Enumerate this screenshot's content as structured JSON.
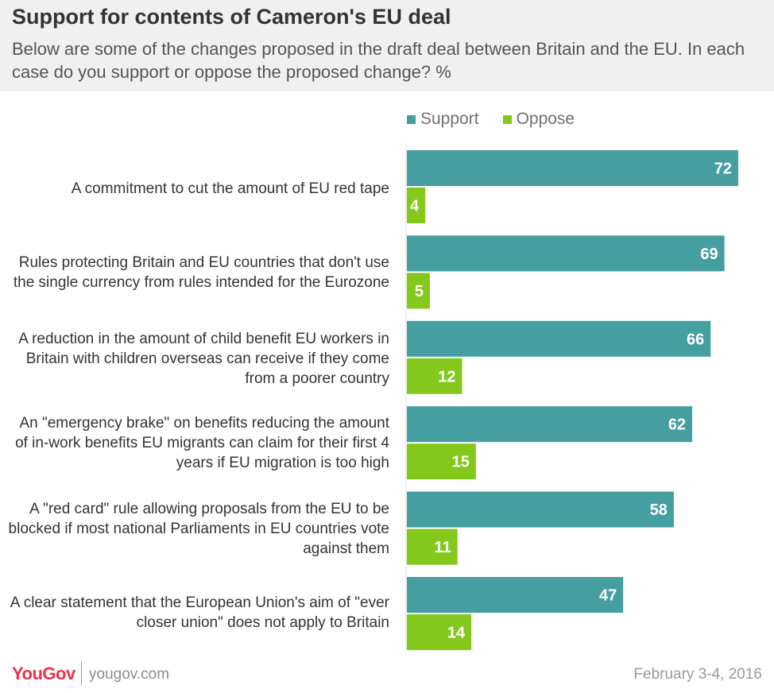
{
  "chart_data": {
    "type": "bar",
    "orientation": "horizontal",
    "title": "Support for contents of Cameron's EU deal",
    "subtitle": "Below are some of the changes proposed in the draft deal between Britain and the EU. In each case do you support or oppose the proposed change? %",
    "categories": [
      "A commitment to cut the amount of EU red tape",
      "Rules protecting Britain and EU countries that don't use the single currency from rules intended for the Eurozone",
      "A reduction in the amount of child benefit EU workers in Britain with children overseas can receive if they come from a poorer country",
      "An \"emergency brake\" on benefits reducing the amount of in-work benefits EU migrants can claim for their first 4 years if EU migration is too high",
      "A \"red card\" rule allowing proposals from the EU to be blocked if most national Parliaments in EU countries vote against them",
      "A clear statement that the European Union's aim of \"ever closer union\" does not apply to Britain"
    ],
    "series": [
      {
        "name": "Support",
        "color": "#459e9f",
        "values": [
          72,
          69,
          66,
          62,
          58,
          47
        ]
      },
      {
        "name": "Oppose",
        "color": "#83c81a",
        "values": [
          4,
          5,
          12,
          15,
          11,
          14
        ]
      }
    ],
    "xlim": [
      0,
      72
    ],
    "legend_position": "top",
    "grid": false
  },
  "footer": {
    "brand": "YouGov",
    "site": "yougov.com",
    "date": "February 3-4, 2016"
  },
  "colors": {
    "support": "#459e9f",
    "oppose": "#83c81a",
    "header_bg": "#f0f0f0",
    "brand": "#e8334a"
  }
}
